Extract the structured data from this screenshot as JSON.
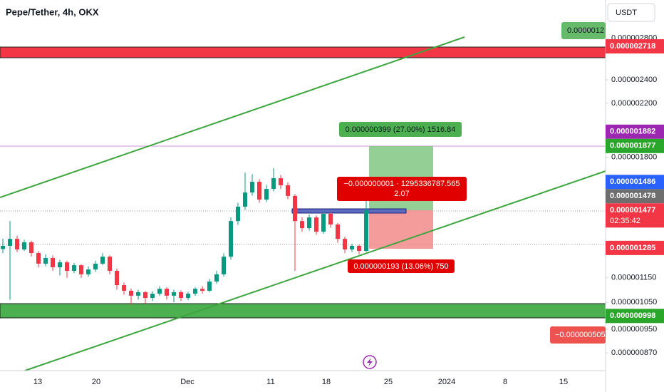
{
  "chart_data": {
    "type": "candlestick",
    "title": "Pepe/Tether, 4h, OKX",
    "currency": "USDT",
    "log_scale": true,
    "ylim": [
      8.145e-07,
      3.229e-06
    ],
    "yticks": [
      {
        "value": 2.8e-06,
        "label": "0.000002800"
      },
      {
        "value": 2.4e-06,
        "label": "0.000002400"
      },
      {
        "value": 2.2e-06,
        "label": "0.000002200"
      },
      {
        "value": 1.8e-06,
        "label": "0.000001800"
      },
      {
        "value": 1.15e-06,
        "label": "0.000001150"
      },
      {
        "value": 1.05e-06,
        "label": "0.000001050"
      },
      {
        "value": 9.5e-07,
        "label": "0.000000950"
      },
      {
        "value": 8.7e-07,
        "label": "0.000000870"
      }
    ],
    "x_labels": [
      "13",
      "20",
      "Dec",
      "11",
      "18",
      "25",
      "2024",
      "8",
      "15"
    ],
    "up_color": "#089981",
    "down_color": "#f23645",
    "open": [
      1.28e-06,
      1.295e-06,
      1.329e-06,
      1.278e-06,
      1.312e-06,
      1.261e-06,
      1.212e-06,
      1.238e-06,
      1.196e-06,
      1.218e-06,
      1.18e-06,
      1.205e-06,
      1.165e-06,
      1.186e-06,
      1.212e-06,
      1.244e-06,
      1.18e-06,
      1.119e-06,
      1.096e-06,
      1.076e-06,
      1.09e-06,
      1.067e-06,
      1.084e-06,
      1.104e-06,
      1.076e-06,
      1.09e-06,
      1.067e-06,
      1.084e-06,
      1.104e-06,
      1.096e-06,
      1.134e-06,
      1.165e-06,
      1.244e-06,
      1.42e-06,
      1.498e-06,
      1.579e-06,
      1.643e-06,
      1.538e-06,
      1.6e-06,
      1.665e-06,
      1.622e-06,
      1.559e-06,
      1.42e-06,
      1.383e-06,
      1.439e-06,
      1.365e-06,
      1.459e-06,
      1.402e-06,
      1.329e-06,
      1.278e-06,
      1.295e-06,
      1.271e-06
    ],
    "high": [
      1.33e-06,
      1.42e-06,
      1.345e-06,
      1.325e-06,
      1.32e-06,
      1.27e-06,
      1.255e-06,
      1.25e-06,
      1.23e-06,
      1.225e-06,
      1.215e-06,
      1.21e-06,
      1.2e-06,
      1.225e-06,
      1.26e-06,
      1.25e-06,
      1.19e-06,
      1.13e-06,
      1.105e-06,
      1.1e-06,
      1.095e-06,
      1.095e-06,
      1.115e-06,
      1.11e-06,
      1.1e-06,
      1.098e-06,
      1.092e-06,
      1.11e-06,
      1.115e-06,
      1.145e-06,
      1.18e-06,
      1.26e-06,
      1.44e-06,
      1.52e-06,
      1.7e-06,
      1.69e-06,
      1.66e-06,
      1.625e-06,
      1.73e-06,
      1.685e-06,
      1.64e-06,
      1.57e-06,
      1.44e-06,
      1.455e-06,
      1.45e-06,
      1.475e-06,
      1.465e-06,
      1.41e-06,
      1.34e-06,
      1.305e-06,
      1.3e-06,
      1.56e-06
    ],
    "low": [
      1.26e-06,
      1.06e-06,
      1.265e-06,
      1.27e-06,
      1.245e-06,
      1.195e-06,
      1.2e-06,
      1.18e-06,
      1.16e-06,
      1.15e-06,
      1.17e-06,
      1.15e-06,
      1.155e-06,
      1.175e-06,
      1.205e-06,
      1.165e-06,
      1.1e-06,
      1.08e-06,
      1.04e-06,
      1.06e-06,
      1.045e-06,
      1.055e-06,
      1.075e-06,
      1.06e-06,
      1.05e-06,
      1.055e-06,
      1.058e-06,
      1.075e-06,
      1.085e-06,
      1.09e-06,
      1.125e-06,
      1.155e-06,
      1.23e-06,
      1.4e-06,
      1.48e-06,
      1.56e-06,
      1.52e-06,
      1.525e-06,
      1.585e-06,
      1.6e-06,
      1.54e-06,
      1.18e-06,
      1.365e-06,
      1.37e-06,
      1.35e-06,
      1.355e-06,
      1.385e-06,
      1.31e-06,
      1.26e-06,
      1.265e-06,
      1.255e-06,
      1.265e-06
    ],
    "close": [
      1.295e-06,
      1.329e-06,
      1.278e-06,
      1.312e-06,
      1.261e-06,
      1.212e-06,
      1.238e-06,
      1.196e-06,
      1.218e-06,
      1.18e-06,
      1.205e-06,
      1.165e-06,
      1.186e-06,
      1.212e-06,
      1.244e-06,
      1.18e-06,
      1.119e-06,
      1.096e-06,
      1.076e-06,
      1.09e-06,
      1.067e-06,
      1.084e-06,
      1.104e-06,
      1.076e-06,
      1.09e-06,
      1.067e-06,
      1.084e-06,
      1.104e-06,
      1.096e-06,
      1.134e-06,
      1.165e-06,
      1.244e-06,
      1.42e-06,
      1.498e-06,
      1.579e-06,
      1.643e-06,
      1.538e-06,
      1.6e-06,
      1.665e-06,
      1.622e-06,
      1.559e-06,
      1.42e-06,
      1.383e-06,
      1.439e-06,
      1.365e-06,
      1.459e-06,
      1.402e-06,
      1.329e-06,
      1.278e-06,
      1.295e-06,
      1.271e-06,
      1.478e-06
    ],
    "price_tags": [
      {
        "label": "0.000002718",
        "value": 2.718e-06,
        "color": "#f23645"
      },
      {
        "label": "0.000001882",
        "value": 1.882e-06,
        "color": "#9c27b0"
      },
      {
        "label": "0.000001877",
        "value": 1.877e-06,
        "color": "#2aa72a"
      },
      {
        "label": "0.000001486",
        "value": 1.486e-06,
        "color": "#2962ff"
      },
      {
        "label": "0.000001478",
        "value": 1.478e-06,
        "color": "#6e6e6e"
      },
      {
        "label": "0.000001477",
        "value": 1.477e-06,
        "color": "#f23645",
        "sublabel": "02:35:42"
      },
      {
        "label": "0.000001285",
        "value": 1.285e-06,
        "color": "#f23645"
      },
      {
        "label": "0.000000998",
        "value": 9.98e-07,
        "color": "#2aa72a"
      }
    ],
    "top_tag": "0.0000012",
    "bottom_tag": "−0.000000505",
    "position_labels": [
      "0.000000399 (27.00%) 1516.84",
      "−0.000000001 · 1295336787.565",
      "2.07",
      "0.000000193 (13.06%) 750"
    ]
  }
}
